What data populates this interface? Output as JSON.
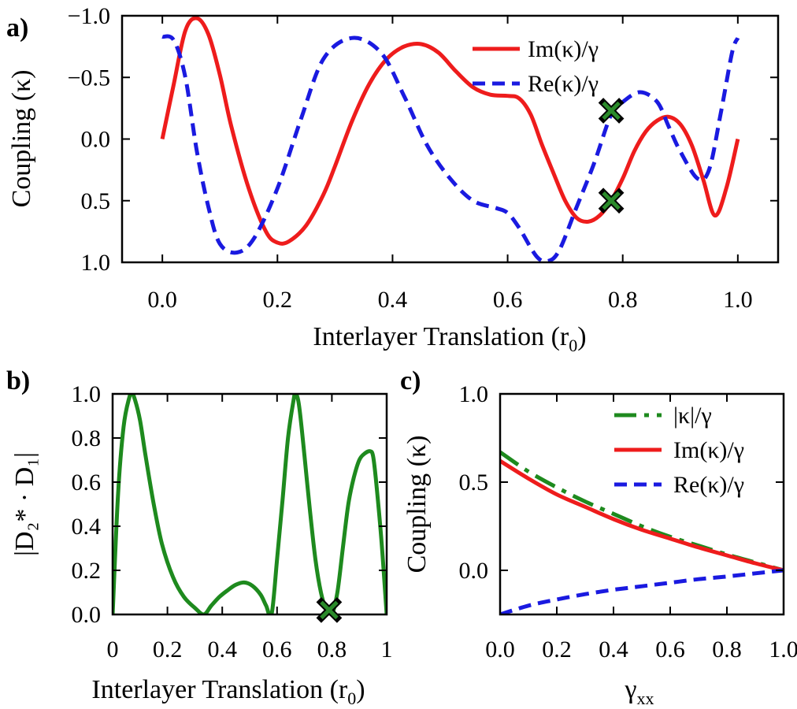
{
  "colors": {
    "im": "#ee1c1c",
    "re": "#1a1ae0",
    "abs": "#1e8a1e",
    "marker_fill": "#2a8a2a",
    "axis": "#000000"
  },
  "chart_data": [
    {
      "id": "a",
      "panel_label": "a)",
      "type": "line",
      "xlabel": "Interlayer Translation (r",
      "xlabel_sub": "0",
      "xlabel_close": ")",
      "ylabel": "Coupling (κ)",
      "xlim": [
        0,
        1
      ],
      "ylim": [
        1.0,
        -1.0
      ],
      "y_inverted": true,
      "xticks": [
        0.0,
        0.2,
        0.4,
        0.6,
        0.8,
        1.0
      ],
      "xtick_labels": [
        "0.0",
        "0.2",
        "0.4",
        "0.6",
        "0.8",
        "1.0"
      ],
      "yticks": [
        -1.0,
        -0.5,
        0.0,
        0.5,
        1.0
      ],
      "ytick_labels": [
        "−1.0",
        "−0.5",
        "0.0",
        "0.5",
        "1.0"
      ],
      "legend": {
        "position": "top-right",
        "entries": [
          "Im(κ)/γ",
          "Re(κ)/γ"
        ]
      },
      "series": [
        {
          "name": "Im(κ)/γ",
          "style": "solid",
          "color_key": "im",
          "x": [
            0.0,
            0.02,
            0.04,
            0.06,
            0.08,
            0.1,
            0.12,
            0.15,
            0.18,
            0.2,
            0.22,
            0.25,
            0.28,
            0.3,
            0.33,
            0.36,
            0.39,
            0.42,
            0.45,
            0.48,
            0.51,
            0.54,
            0.57,
            0.6,
            0.62,
            0.64,
            0.66,
            0.68,
            0.7,
            0.72,
            0.74,
            0.76,
            0.78,
            0.8,
            0.82,
            0.84,
            0.86,
            0.88,
            0.9,
            0.92,
            0.94,
            0.96,
            0.98,
            1.0
          ],
          "values": [
            0.0,
            -0.45,
            -0.88,
            -0.98,
            -0.85,
            -0.52,
            -0.1,
            0.4,
            0.75,
            0.84,
            0.83,
            0.7,
            0.45,
            0.22,
            -0.15,
            -0.45,
            -0.65,
            -0.75,
            -0.77,
            -0.7,
            -0.55,
            -0.42,
            -0.36,
            -0.35,
            -0.33,
            -0.2,
            0.05,
            0.28,
            0.5,
            0.64,
            0.67,
            0.62,
            0.5,
            0.32,
            0.1,
            -0.06,
            -0.15,
            -0.18,
            -0.12,
            0.05,
            0.33,
            0.62,
            0.4,
            0.0
          ]
        },
        {
          "name": "Re(κ)/γ",
          "style": "dashed",
          "color_key": "re",
          "x": [
            0.0,
            0.02,
            0.04,
            0.06,
            0.08,
            0.1,
            0.13,
            0.16,
            0.2,
            0.24,
            0.28,
            0.33,
            0.38,
            0.42,
            0.46,
            0.5,
            0.54,
            0.58,
            0.6,
            0.62,
            0.65,
            0.67,
            0.69,
            0.72,
            0.75,
            0.78,
            0.8,
            0.83,
            0.86,
            0.88,
            0.9,
            0.93,
            0.95,
            0.97,
            0.99,
            1.0
          ],
          "values": [
            -0.83,
            -0.8,
            -0.5,
            0.1,
            0.55,
            0.85,
            0.92,
            0.8,
            0.4,
            -0.15,
            -0.65,
            -0.82,
            -0.7,
            -0.35,
            0.05,
            0.32,
            0.5,
            0.56,
            0.6,
            0.72,
            0.95,
            0.99,
            0.9,
            0.55,
            0.2,
            -0.2,
            -0.3,
            -0.38,
            -0.3,
            -0.1,
            0.1,
            0.32,
            0.25,
            -0.2,
            -0.7,
            -0.82
          ]
        }
      ],
      "markers": [
        {
          "x": 0.78,
          "y": -0.23
        },
        {
          "x": 0.78,
          "y": 0.5
        }
      ]
    },
    {
      "id": "b",
      "panel_label": "b)",
      "type": "line",
      "xlabel": "Interlayer Translation (r",
      "xlabel_sub": "0",
      "xlabel_close": ")",
      "ylabel": "|D₂* · D₁|",
      "xlim": [
        0,
        1
      ],
      "ylim": [
        0,
        1.0
      ],
      "xticks": [
        0,
        0.2,
        0.4,
        0.6,
        0.8,
        1
      ],
      "xtick_labels": [
        "0",
        "0.2",
        "0.4",
        "0.6",
        "0.8",
        "1"
      ],
      "yticks": [
        0.0,
        0.2,
        0.4,
        0.6,
        0.8,
        1.0
      ],
      "ytick_labels": [
        "0.0",
        "0.2",
        "0.4",
        "0.6",
        "0.8",
        "1.0"
      ],
      "series": [
        {
          "name": "|D2*·D1|",
          "style": "solid",
          "color_key": "abs",
          "x": [
            0.0,
            0.02,
            0.04,
            0.06,
            0.07,
            0.08,
            0.1,
            0.12,
            0.15,
            0.18,
            0.22,
            0.26,
            0.3,
            0.333,
            0.36,
            0.39,
            0.42,
            0.45,
            0.48,
            0.51,
            0.54,
            0.56,
            0.58,
            0.6,
            0.62,
            0.64,
            0.66,
            0.667,
            0.68,
            0.7,
            0.72,
            0.74,
            0.76,
            0.78,
            0.8,
            0.82,
            0.84,
            0.86,
            0.88,
            0.9,
            0.92,
            0.94,
            0.95,
            0.96,
            0.98,
            1.0
          ],
          "values": [
            0.0,
            0.55,
            0.85,
            0.98,
            1.0,
            0.98,
            0.88,
            0.72,
            0.5,
            0.32,
            0.17,
            0.08,
            0.03,
            0.0,
            0.04,
            0.08,
            0.11,
            0.135,
            0.145,
            0.13,
            0.09,
            0.04,
            0.0,
            0.25,
            0.52,
            0.8,
            0.97,
            1.0,
            0.95,
            0.72,
            0.47,
            0.25,
            0.1,
            0.02,
            0.0,
            0.1,
            0.3,
            0.5,
            0.62,
            0.7,
            0.73,
            0.74,
            0.72,
            0.62,
            0.35,
            0.0
          ]
        }
      ],
      "markers": [
        {
          "x": 0.79,
          "y": 0.02
        }
      ]
    },
    {
      "id": "c",
      "panel_label": "c)",
      "type": "line",
      "xlabel": "γ",
      "xlabel_sub": "xx",
      "xlabel_close": "",
      "ylabel": "Coupling (κ)",
      "xlim": [
        0,
        1
      ],
      "ylim": [
        -0.25,
        1.0
      ],
      "xticks": [
        0.0,
        0.2,
        0.4,
        0.6,
        0.8,
        1.0
      ],
      "xtick_labels": [
        "0.0",
        "0.2",
        "0.4",
        "0.6",
        "0.8",
        "1.0"
      ],
      "yticks": [
        0.0,
        0.5,
        1.0
      ],
      "ytick_labels": [
        "0.0",
        "0.5",
        "1.0"
      ],
      "legend": {
        "position": "top-right",
        "entries": [
          "|κ|/γ",
          "Im(κ)/γ",
          "Re(κ)/γ"
        ]
      },
      "series": [
        {
          "name": "|κ|/γ",
          "style": "dashdot",
          "color_key": "abs",
          "x": [
            0.0,
            0.1,
            0.2,
            0.3,
            0.4,
            0.5,
            0.6,
            0.7,
            0.8,
            0.9,
            1.0
          ],
          "values": [
            0.67,
            0.56,
            0.47,
            0.39,
            0.32,
            0.25,
            0.19,
            0.14,
            0.09,
            0.045,
            0.0
          ]
        },
        {
          "name": "Im(κ)/γ",
          "style": "solid",
          "color_key": "im",
          "x": [
            0.0,
            0.1,
            0.2,
            0.3,
            0.4,
            0.5,
            0.6,
            0.7,
            0.8,
            0.9,
            1.0
          ],
          "values": [
            0.62,
            0.52,
            0.43,
            0.36,
            0.29,
            0.23,
            0.18,
            0.13,
            0.085,
            0.04,
            0.0
          ]
        },
        {
          "name": "Re(κ)/γ",
          "style": "dashed",
          "color_key": "re",
          "x": [
            0.0,
            0.1,
            0.2,
            0.3,
            0.4,
            0.5,
            0.6,
            0.7,
            0.8,
            0.9,
            1.0
          ],
          "values": [
            -0.25,
            -0.2,
            -0.165,
            -0.135,
            -0.11,
            -0.09,
            -0.07,
            -0.05,
            -0.035,
            -0.017,
            0.0
          ]
        }
      ]
    }
  ]
}
